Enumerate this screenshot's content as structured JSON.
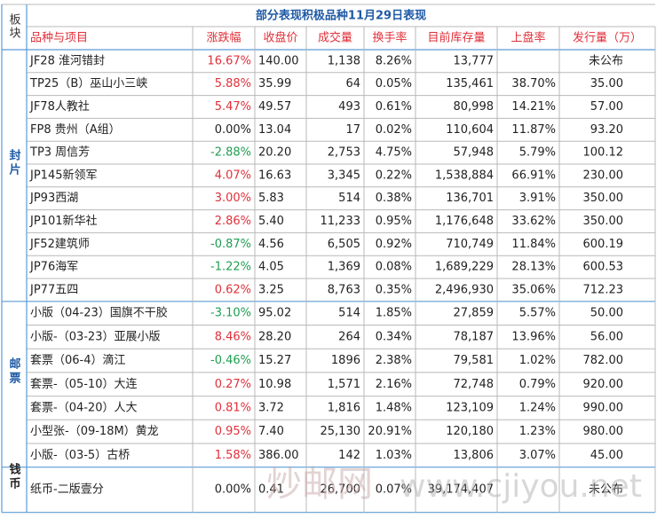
{
  "title": "部分表现积极品种11月29日表现",
  "header": {
    "section": "板块",
    "columns": [
      "品种与项目",
      "涨跌幅",
      "收盘价",
      "成交量",
      "换手率",
      "目前库存量",
      "上盘率",
      "发行量（万）"
    ]
  },
  "sections": [
    {
      "label": "封片",
      "rows": [
        [
          "JF28 淮河错封",
          "16.67%",
          "140.00",
          "1,138",
          "8.26%",
          "13,777",
          "",
          "未公布"
        ],
        [
          "TP25（B）巫山小三峡",
          "5.88%",
          "35.99",
          "64",
          "0.05%",
          "135,461",
          "38.70%",
          "35.00"
        ],
        [
          "JF78人教社",
          "5.47%",
          "49.57",
          "493",
          "0.61%",
          "80,998",
          "14.21%",
          "57.00"
        ],
        [
          "FP8 贵州（A组）",
          "0.00%",
          "13.04",
          "17",
          "0.02%",
          "110,604",
          "11.87%",
          "93.20"
        ],
        [
          "TP3 周信芳",
          "-2.88%",
          "20.20",
          "2,753",
          "4.75%",
          "57,948",
          "5.79%",
          "100.12"
        ],
        [
          "JP145新领军",
          "4.07%",
          "16.63",
          "3,345",
          "0.22%",
          "1,538,884",
          "66.91%",
          "230.00"
        ],
        [
          "JP93西湖",
          "3.00%",
          "5.83",
          "514",
          "0.38%",
          "136,701",
          "3.91%",
          "350.00"
        ],
        [
          "JP101新华社",
          "2.86%",
          "5.40",
          "11,233",
          "0.95%",
          "1,176,648",
          "33.62%",
          "350.00"
        ],
        [
          "JF52建筑师",
          "-0.87%",
          "4.56",
          "6,505",
          "0.92%",
          "710,749",
          "11.84%",
          "600.19"
        ],
        [
          "JP76海军",
          "-1.22%",
          "4.05",
          "1,369",
          "0.08%",
          "1,689,229",
          "28.13%",
          "600.53"
        ],
        [
          "JP77五四",
          "0.62%",
          "3.25",
          "8,763",
          "0.35%",
          "2,496,930",
          "35.06%",
          "712.23"
        ]
      ]
    },
    {
      "label": "邮票",
      "rows": [
        [
          "小版（04-23）国旗不干胶",
          "-3.10%",
          "95.02",
          "514",
          "1.85%",
          "27,859",
          "5.57%",
          "50.00"
        ],
        [
          "小版-（03-23）亚展小版",
          "8.46%",
          "28.20",
          "264",
          "0.34%",
          "78,187",
          "13.96%",
          "56.00"
        ],
        [
          "套票（06-4）滴江",
          "-0.46%",
          "15.27",
          "1896",
          "2.38%",
          "79,581",
          "1.02%",
          "782.00"
        ],
        [
          "套票-（05-10）大连",
          "0.27%",
          "10.98",
          "1,571",
          "2.16%",
          "72,748",
          "0.79%",
          "920.00"
        ],
        [
          "套票-（04-20）人大",
          "0.81%",
          "3.72",
          "1,816",
          "1.48%",
          "123,109",
          "1.24%",
          "990.00"
        ],
        [
          "小型张-（09-18M）黄龙",
          "0.95%",
          "7.40",
          "25,130",
          "20.91%",
          "120,180",
          "1.23%",
          "980.00"
        ],
        [
          "小版-（03-5）古桥",
          "1.58%",
          "386.00",
          "142",
          "1.03%",
          "13,806",
          "3.07%",
          "45.00"
        ]
      ]
    },
    {
      "label": "钱币",
      "rows": [
        [
          "纸币-二版壹分",
          "0.00%",
          "0.41",
          "26,700",
          "0.07%",
          "39,174,407",
          "",
          "未公布"
        ]
      ]
    }
  ],
  "watermark": {
    "site": "炒邮网",
    "url": "www.cjiyou.net"
  }
}
